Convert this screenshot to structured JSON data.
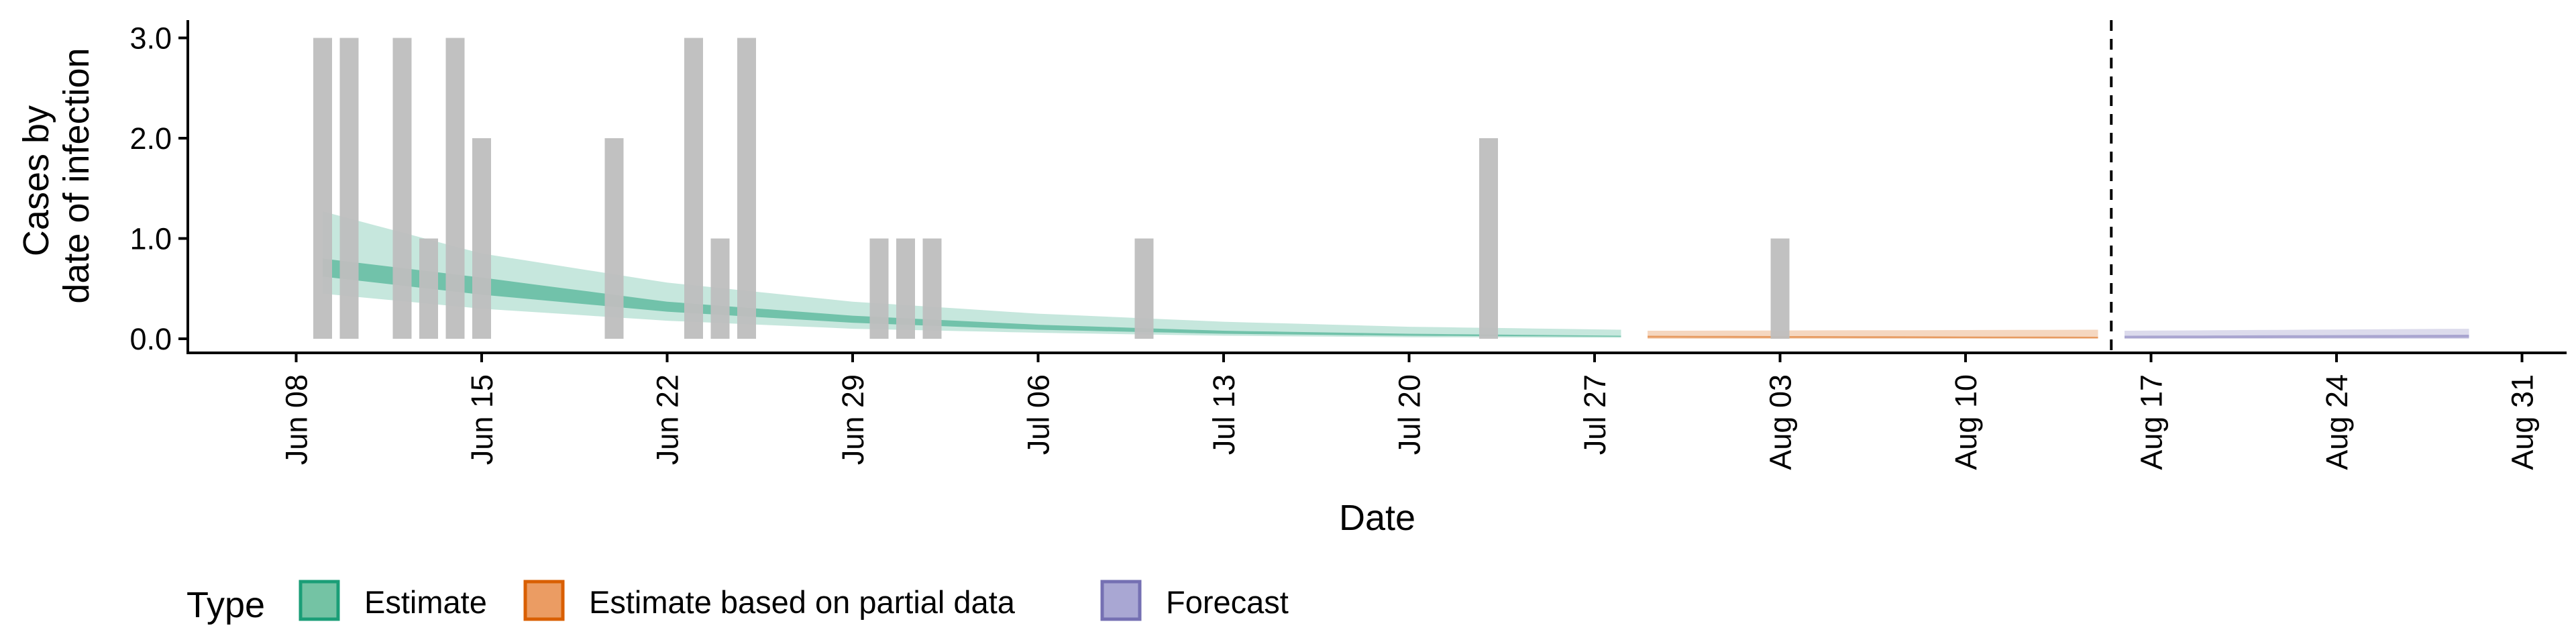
{
  "chart_data": {
    "type": "bar",
    "xlabel": "Date",
    "ylabel_lines": [
      "Cases by",
      "date of infection"
    ],
    "ylim": [
      0,
      3.15
    ],
    "yticks": [
      "0.0",
      "1.0",
      "2.0",
      "3.0"
    ],
    "xlim": [
      "2020-06-01",
      "2020-09-01"
    ],
    "xticks": [
      {
        "date": "2020-06-08",
        "label": "Jun 08"
      },
      {
        "date": "2020-06-15",
        "label": "Jun 15"
      },
      {
        "date": "2020-06-22",
        "label": "Jun 22"
      },
      {
        "date": "2020-06-29",
        "label": "Jun 29"
      },
      {
        "date": "2020-07-06",
        "label": "Jul 06"
      },
      {
        "date": "2020-07-13",
        "label": "Jul 13"
      },
      {
        "date": "2020-07-20",
        "label": "Jul 20"
      },
      {
        "date": "2020-07-27",
        "label": "Jul 27"
      },
      {
        "date": "2020-08-03",
        "label": "Aug 03"
      },
      {
        "date": "2020-08-10",
        "label": "Aug 10"
      },
      {
        "date": "2020-08-17",
        "label": "Aug 17"
      },
      {
        "date": "2020-08-24",
        "label": "Aug 24"
      },
      {
        "date": "2020-08-31",
        "label": "Aug 31"
      }
    ],
    "forecast_line_date": "2020-08-15",
    "grid": false,
    "bar_color": "#bebebe",
    "observed_cases": [
      {
        "date": "2020-06-09",
        "value": 3
      },
      {
        "date": "2020-06-10",
        "value": 3
      },
      {
        "date": "2020-06-12",
        "value": 3
      },
      {
        "date": "2020-06-13",
        "value": 1
      },
      {
        "date": "2020-06-14",
        "value": 3
      },
      {
        "date": "2020-06-15",
        "value": 2
      },
      {
        "date": "2020-06-20",
        "value": 2
      },
      {
        "date": "2020-06-23",
        "value": 3
      },
      {
        "date": "2020-06-24",
        "value": 1
      },
      {
        "date": "2020-06-25",
        "value": 3
      },
      {
        "date": "2020-06-30",
        "value": 1
      },
      {
        "date": "2020-07-01",
        "value": 1
      },
      {
        "date": "2020-07-02",
        "value": 1
      },
      {
        "date": "2020-07-10",
        "value": 1
      },
      {
        "date": "2020-07-23",
        "value": 2
      },
      {
        "date": "2020-08-03",
        "value": 1
      }
    ],
    "legend": {
      "title": "Type",
      "position": "bottom",
      "items": [
        {
          "label": "Estimate",
          "fill": "#74c3a4",
          "stroke": "#1b9e77"
        },
        {
          "label": "Estimate based on partial data",
          "fill": "#eb9c63",
          "stroke": "#d95f02"
        },
        {
          "label": "Forecast",
          "fill": "#a9a7d3",
          "stroke": "#7570b3"
        }
      ]
    },
    "series": [
      {
        "type_label": "Estimate",
        "color": "#1b9e77",
        "start": "2020-06-09",
        "end": "2020-07-28",
        "anchors": [
          {
            "date": "2020-06-09",
            "lower90": 0.45,
            "lower50": 0.62,
            "upper50": 0.8,
            "upper90": 1.27
          },
          {
            "date": "2020-06-15",
            "lower90": 0.3,
            "lower50": 0.44,
            "upper50": 0.61,
            "upper90": 0.85
          },
          {
            "date": "2020-06-22",
            "lower90": 0.18,
            "lower50": 0.27,
            "upper50": 0.37,
            "upper90": 0.56
          },
          {
            "date": "2020-06-29",
            "lower90": 0.1,
            "lower50": 0.16,
            "upper50": 0.23,
            "upper90": 0.37
          },
          {
            "date": "2020-07-06",
            "lower90": 0.06,
            "lower50": 0.09,
            "upper50": 0.14,
            "upper90": 0.25
          },
          {
            "date": "2020-07-13",
            "lower90": 0.03,
            "lower50": 0.05,
            "upper50": 0.08,
            "upper90": 0.17
          },
          {
            "date": "2020-07-20",
            "lower90": 0.015,
            "lower50": 0.03,
            "upper50": 0.05,
            "upper90": 0.12
          },
          {
            "date": "2020-07-28",
            "lower90": 0.01,
            "lower50": 0.02,
            "upper50": 0.03,
            "upper90": 0.09
          }
        ]
      },
      {
        "type_label": "Estimate based on partial data",
        "color": "#d95f02",
        "start": "2020-07-29",
        "end": "2020-08-15",
        "anchors": [
          {
            "date": "2020-07-29",
            "lower90": 0.0,
            "lower50": 0.01,
            "upper50": 0.03,
            "upper90": 0.08
          },
          {
            "date": "2020-08-15",
            "lower90": 0.0,
            "lower50": 0.005,
            "upper50": 0.02,
            "upper90": 0.09
          }
        ]
      },
      {
        "type_label": "Forecast",
        "color": "#7570b3",
        "start": "2020-08-16",
        "end": "2020-08-29",
        "anchors": [
          {
            "date": "2020-08-16",
            "lower90": 0.0,
            "lower50": 0.005,
            "upper50": 0.03,
            "upper90": 0.08
          },
          {
            "date": "2020-08-29",
            "lower90": 0.0,
            "lower50": 0.01,
            "upper50": 0.04,
            "upper90": 0.1
          }
        ]
      }
    ]
  }
}
